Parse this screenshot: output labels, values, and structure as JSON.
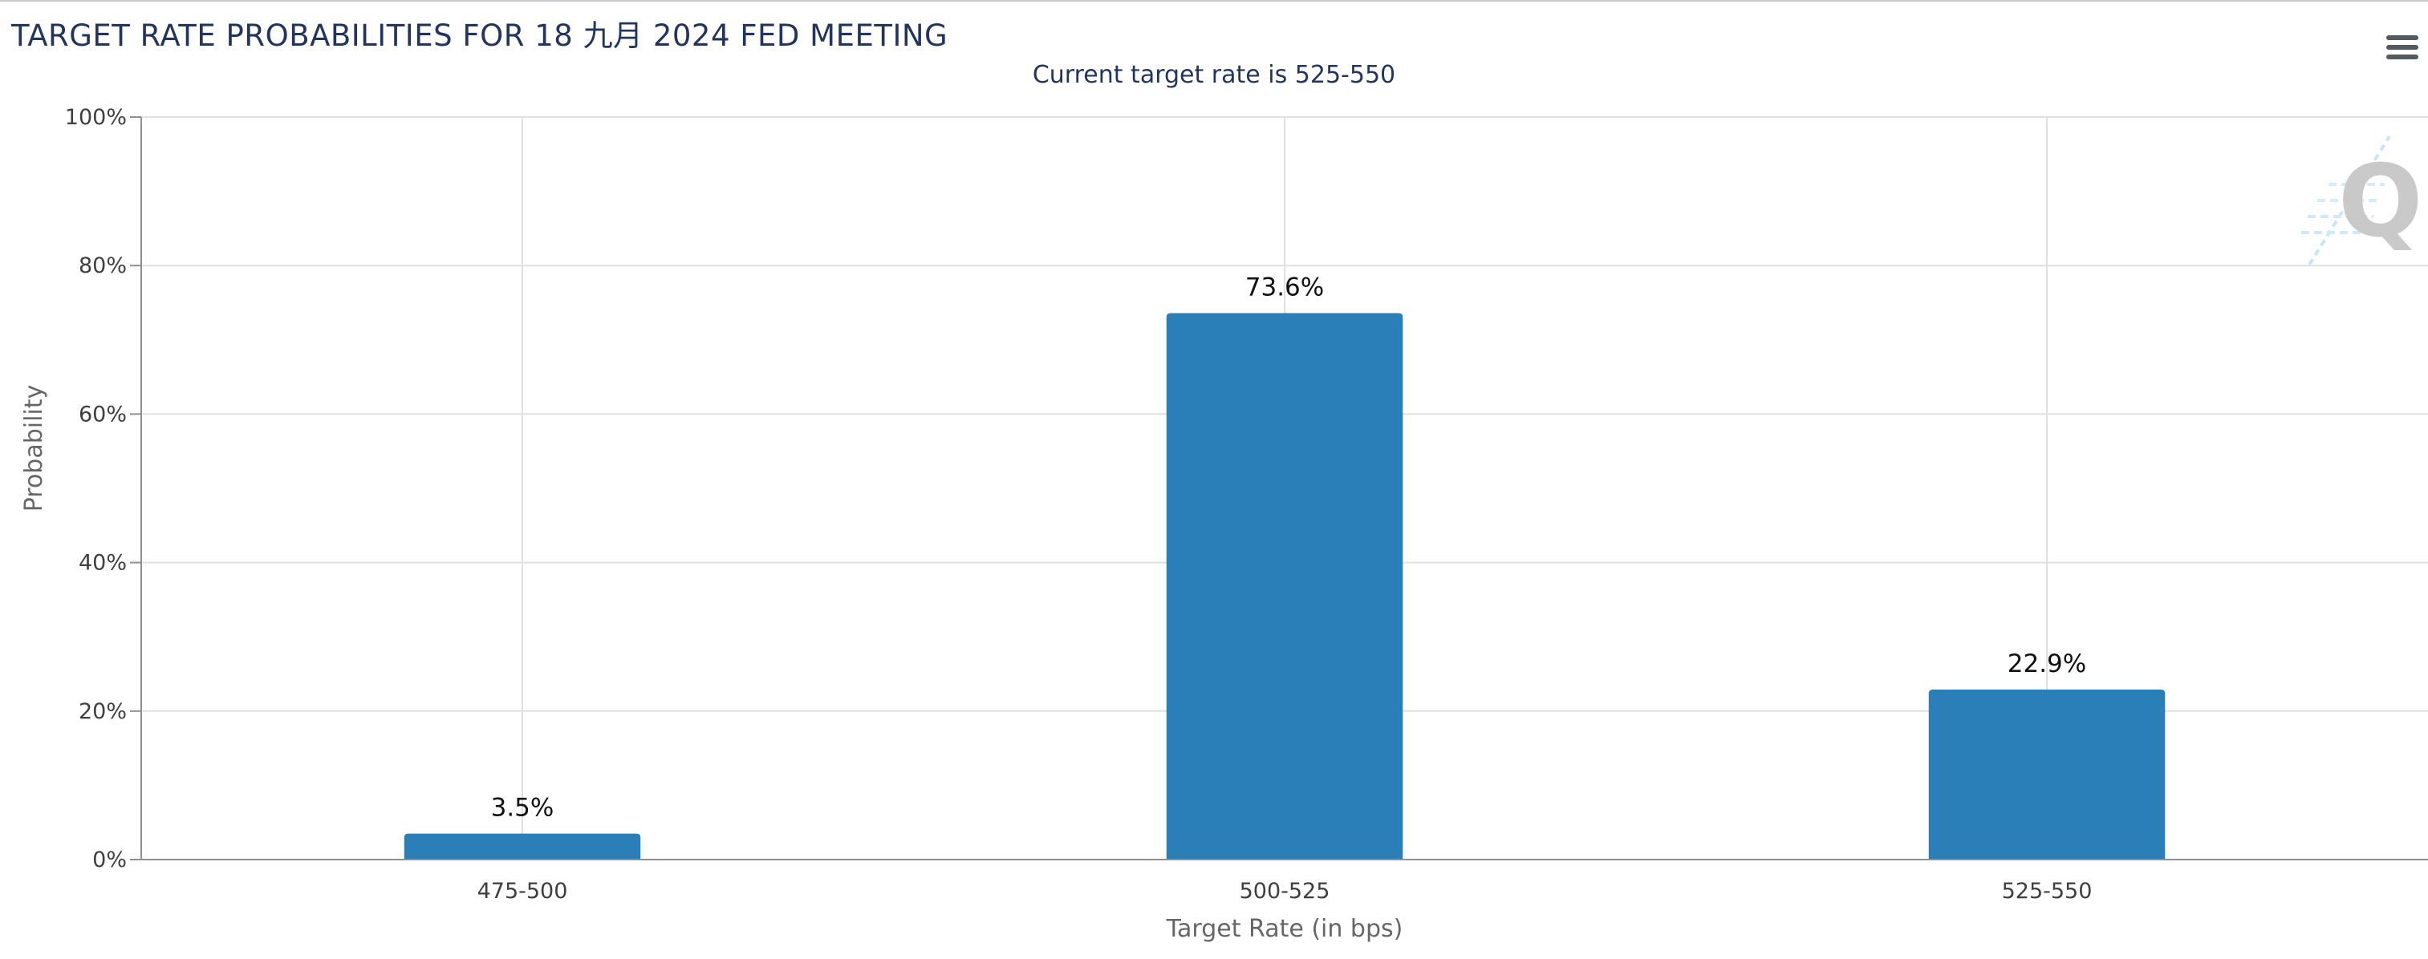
{
  "chart": {
    "title": "TARGET RATE PROBABILITIES FOR 18 九月 2024 FED MEETING",
    "subtitle": "Current target rate is 525-550",
    "watermark_text": "Q"
  },
  "menu": {
    "icon": "hamburger-menu-icon"
  },
  "chart_data": {
    "type": "bar",
    "title": "TARGET RATE PROBABILITIES FOR 18 九月 2024 FED MEETING",
    "subtitle": "Current target rate is 525-550",
    "xlabel": "Target Rate (in bps)",
    "ylabel": "Probability",
    "categories": [
      "475-500",
      "500-525",
      "525-550"
    ],
    "values": [
      3.5,
      73.6,
      22.9
    ],
    "data_labels": [
      "3.5%",
      "73.6%",
      "22.9%"
    ],
    "ylim": [
      0,
      100
    ],
    "yticks": [
      0,
      20,
      40,
      60,
      80,
      100
    ],
    "ytick_labels": [
      "0%",
      "20%",
      "40%",
      "60%",
      "80%",
      "100%"
    ],
    "grid": true,
    "legend": "none",
    "bar_color": "#2a7fb8",
    "grid_color": "#e0e0e0"
  }
}
